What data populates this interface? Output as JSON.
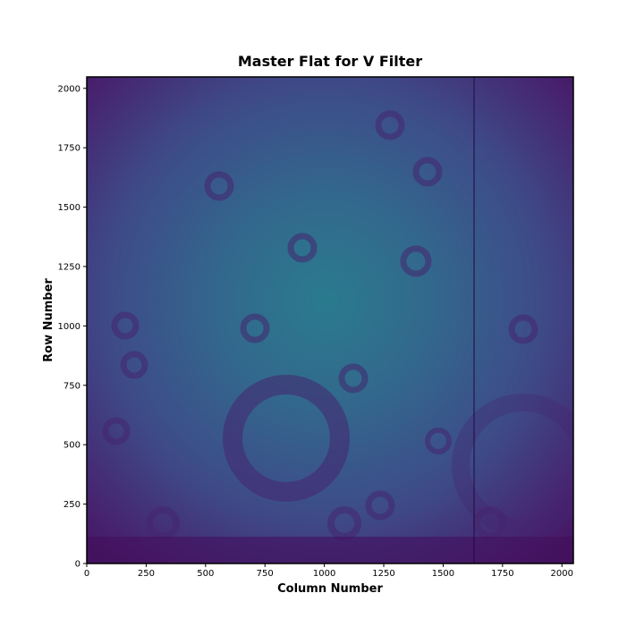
{
  "chart_data": {
    "type": "image",
    "title": "Master Flat for V Filter",
    "xlabel": "Column Number",
    "ylabel": "Row Number",
    "xlim": [
      0,
      2048
    ],
    "ylim": [
      0,
      2048
    ],
    "xticks": [
      0,
      250,
      500,
      750,
      1000,
      1250,
      1500,
      1750,
      2000
    ],
    "yticks": [
      0,
      250,
      500,
      750,
      1000,
      1250,
      1500,
      1750,
      2000
    ]
  }
}
